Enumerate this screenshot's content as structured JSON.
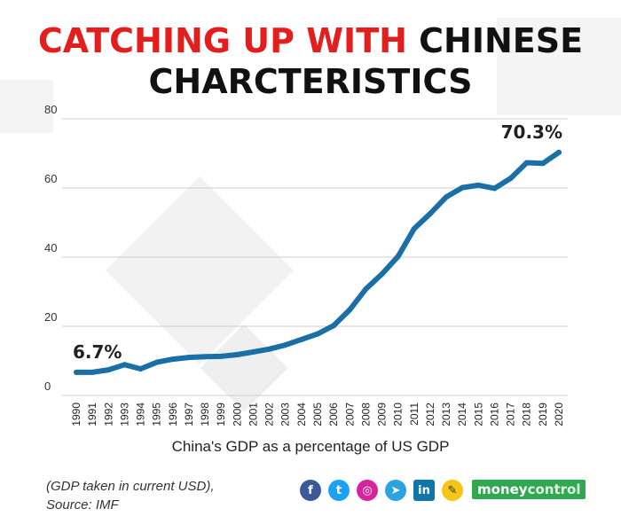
{
  "title": {
    "line1_red": "CATCHING UP WITH",
    "line1_black": "CHINESE",
    "line2": "CHARCTERISTICS"
  },
  "caption": "China's GDP as a percentage of US GDP",
  "footnote": {
    "line1": "(GDP taken in current USD),",
    "line2": "Source: IMF"
  },
  "social_icons": [
    "facebook-icon",
    "twitter-icon",
    "instagram-icon",
    "telegram-icon",
    "linkedin-icon",
    "koo-icon"
  ],
  "brand": {
    "part1": "money",
    "part2": "control"
  },
  "colors": {
    "line": "#1a6fa6",
    "title_red": "#e41d1d",
    "brand_green": "#2fa84f"
  },
  "chart_data": {
    "type": "line",
    "title": "",
    "xlabel": "China's GDP as a percentage of US GDP",
    "ylabel": "",
    "ylim": [
      0,
      80
    ],
    "yticks": [
      0,
      20,
      40,
      60,
      80
    ],
    "grid": true,
    "x": [
      "1990",
      "1991",
      "1992",
      "1993",
      "1994",
      "1995",
      "1996",
      "1997",
      "1998",
      "1999",
      "2000",
      "2001",
      "2002",
      "2003",
      "2004",
      "2005",
      "2006",
      "2007",
      "2008",
      "2009",
      "2010",
      "2011",
      "2012",
      "2013",
      "2014",
      "2015",
      "2016",
      "2017",
      "2018",
      "2019",
      "2020"
    ],
    "series": [
      {
        "values": [
          6.7,
          6.7,
          7.4,
          8.9,
          7.7,
          9.6,
          10.5,
          11.0,
          11.2,
          11.3,
          11.8,
          12.6,
          13.4,
          14.6,
          16.2,
          17.8,
          20.2,
          24.8,
          30.8,
          35.1,
          40.2,
          48.2,
          52.6,
          57.4,
          60.1,
          60.8,
          59.9,
          62.8,
          67.3,
          67.1,
          70.3
        ]
      }
    ],
    "annotations": [
      {
        "x": "1990",
        "text": "6.7%"
      },
      {
        "x": "2020",
        "text": "70.3%"
      }
    ]
  }
}
